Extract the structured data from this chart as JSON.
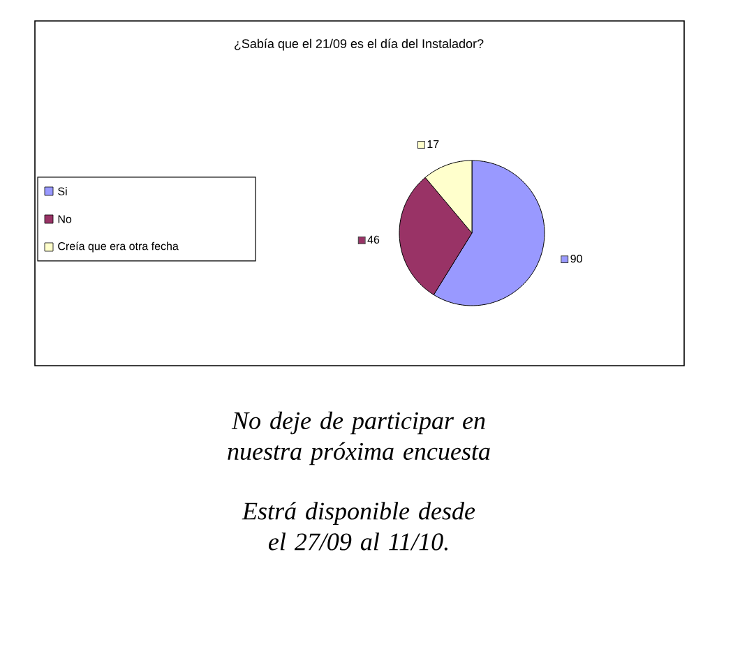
{
  "chart_data": {
    "type": "pie",
    "title": "¿Sabía que el 21/09 es el día del Instalador?",
    "categories": [
      "Si",
      "No",
      "Creía que era otra fecha"
    ],
    "values": [
      90,
      46,
      17
    ],
    "colors": [
      "#9999ff",
      "#993366",
      "#ffffcc"
    ],
    "data_labels": true,
    "legend": "left",
    "annotations": [
      "No deje de participar en nuestra próxima encuesta",
      "Estrá disponible desde el 27/09 al 11/10."
    ]
  }
}
